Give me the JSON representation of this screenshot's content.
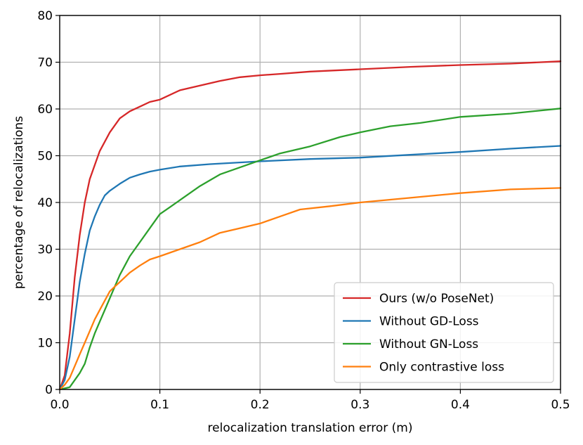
{
  "chart_data": {
    "type": "line",
    "xlabel": "relocalization translation error (m)",
    "ylabel": "percentage of relocalizations",
    "xlim": [
      0,
      0.5
    ],
    "ylim": [
      0,
      80
    ],
    "xticks": [
      "0.0",
      "0.1",
      "0.2",
      "0.3",
      "0.4",
      "0.5"
    ],
    "yticks": [
      "0",
      "10",
      "20",
      "30",
      "40",
      "50",
      "60",
      "70",
      "80"
    ],
    "grid": true,
    "legend_position": "bottom-right",
    "series": [
      {
        "name": "Ours (w/o PoseNet)",
        "color": "#d62728",
        "x": [
          0,
          0.005,
          0.01,
          0.015,
          0.02,
          0.025,
          0.03,
          0.035,
          0.04,
          0.045,
          0.05,
          0.06,
          0.07,
          0.08,
          0.09,
          0.1,
          0.12,
          0.14,
          0.16,
          0.18,
          0.2,
          0.22,
          0.25,
          0.3,
          0.35,
          0.4,
          0.45,
          0.5
        ],
        "y": [
          0,
          3,
          12,
          24,
          33,
          40,
          45,
          48,
          51,
          53,
          55,
          58,
          59.5,
          60.5,
          61.5,
          62,
          64,
          65,
          66,
          66.8,
          67.2,
          67.5,
          68,
          68.5,
          69,
          69.4,
          69.7,
          70.2
        ]
      },
      {
        "name": "Without GD-Loss",
        "color": "#1f77b4",
        "x": [
          0,
          0.005,
          0.01,
          0.015,
          0.02,
          0.025,
          0.03,
          0.035,
          0.04,
          0.045,
          0.05,
          0.06,
          0.07,
          0.08,
          0.09,
          0.1,
          0.12,
          0.15,
          0.2,
          0.25,
          0.3,
          0.35,
          0.4,
          0.45,
          0.5
        ],
        "y": [
          0,
          2,
          7,
          15,
          23,
          29,
          34,
          37,
          39.5,
          41.5,
          42.5,
          44,
          45.3,
          46,
          46.6,
          47,
          47.7,
          48.2,
          48.8,
          49.3,
          49.6,
          50.2,
          50.8,
          51.5,
          52.1
        ]
      },
      {
        "name": "Without GN-Loss",
        "color": "#2ca02c",
        "x": [
          0,
          0.01,
          0.015,
          0.02,
          0.025,
          0.03,
          0.035,
          0.04,
          0.045,
          0.05,
          0.055,
          0.06,
          0.065,
          0.07,
          0.08,
          0.09,
          0.1,
          0.11,
          0.12,
          0.14,
          0.16,
          0.18,
          0.2,
          0.22,
          0.25,
          0.28,
          0.3,
          0.33,
          0.36,
          0.4,
          0.45,
          0.5
        ],
        "y": [
          0,
          0.5,
          2,
          3.5,
          5.5,
          9,
          12,
          14.5,
          17,
          19.5,
          22,
          24.5,
          26.5,
          28.5,
          31.5,
          34.5,
          37.5,
          39,
          40.5,
          43.5,
          46,
          47.5,
          49,
          50.5,
          52,
          54,
          55,
          56.3,
          57,
          58.3,
          59,
          60.1
        ]
      },
      {
        "name": "Only contrastive loss",
        "color": "#ff7f0e",
        "x": [
          0,
          0.005,
          0.01,
          0.015,
          0.02,
          0.025,
          0.03,
          0.035,
          0.04,
          0.045,
          0.05,
          0.055,
          0.06,
          0.07,
          0.08,
          0.09,
          0.1,
          0.12,
          0.14,
          0.16,
          0.18,
          0.2,
          0.22,
          0.24,
          0.27,
          0.3,
          0.35,
          0.4,
          0.45,
          0.5
        ],
        "y": [
          0,
          1,
          2.5,
          5,
          7.5,
          10,
          12.5,
          15,
          17,
          19,
          21,
          22,
          23,
          25,
          26.5,
          27.8,
          28.5,
          30,
          31.5,
          33.5,
          34.5,
          35.5,
          37,
          38.5,
          39.2,
          40,
          41,
          42,
          42.8,
          43.1
        ]
      }
    ]
  }
}
